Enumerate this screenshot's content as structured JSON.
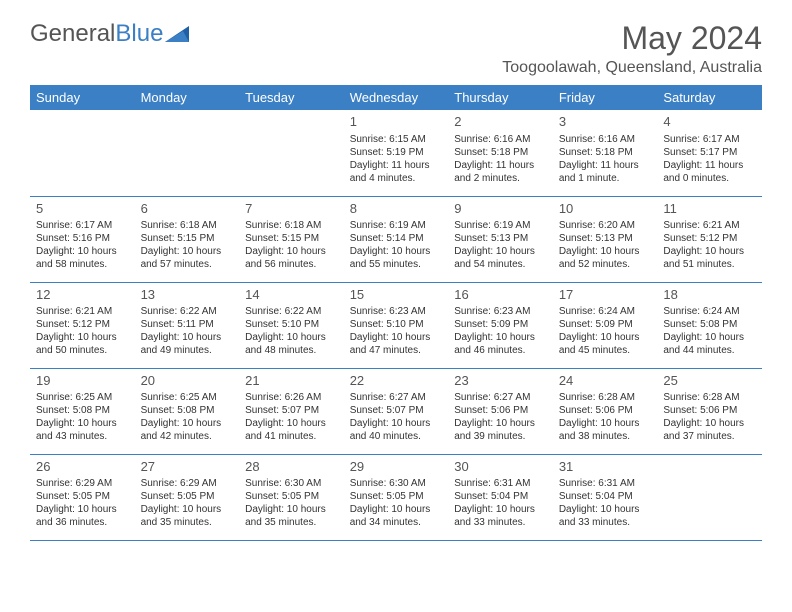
{
  "logo": {
    "text_gray": "General",
    "text_blue": "Blue"
  },
  "title": "May 2024",
  "location": "Toogoolawah, Queensland, Australia",
  "header_bg": "#3b7fc4",
  "header_fg": "#ffffff",
  "border_color": "#3b7fc4",
  "weekdays": [
    "Sunday",
    "Monday",
    "Tuesday",
    "Wednesday",
    "Thursday",
    "Friday",
    "Saturday"
  ],
  "weeks": [
    [
      {
        "day": ""
      },
      {
        "day": ""
      },
      {
        "day": ""
      },
      {
        "day": "1",
        "sunrise": "Sunrise: 6:15 AM",
        "sunset": "Sunset: 5:19 PM",
        "dl1": "Daylight: 11 hours",
        "dl2": "and 4 minutes."
      },
      {
        "day": "2",
        "sunrise": "Sunrise: 6:16 AM",
        "sunset": "Sunset: 5:18 PM",
        "dl1": "Daylight: 11 hours",
        "dl2": "and 2 minutes."
      },
      {
        "day": "3",
        "sunrise": "Sunrise: 6:16 AM",
        "sunset": "Sunset: 5:18 PM",
        "dl1": "Daylight: 11 hours",
        "dl2": "and 1 minute."
      },
      {
        "day": "4",
        "sunrise": "Sunrise: 6:17 AM",
        "sunset": "Sunset: 5:17 PM",
        "dl1": "Daylight: 11 hours",
        "dl2": "and 0 minutes."
      }
    ],
    [
      {
        "day": "5",
        "sunrise": "Sunrise: 6:17 AM",
        "sunset": "Sunset: 5:16 PM",
        "dl1": "Daylight: 10 hours",
        "dl2": "and 58 minutes."
      },
      {
        "day": "6",
        "sunrise": "Sunrise: 6:18 AM",
        "sunset": "Sunset: 5:15 PM",
        "dl1": "Daylight: 10 hours",
        "dl2": "and 57 minutes."
      },
      {
        "day": "7",
        "sunrise": "Sunrise: 6:18 AM",
        "sunset": "Sunset: 5:15 PM",
        "dl1": "Daylight: 10 hours",
        "dl2": "and 56 minutes."
      },
      {
        "day": "8",
        "sunrise": "Sunrise: 6:19 AM",
        "sunset": "Sunset: 5:14 PM",
        "dl1": "Daylight: 10 hours",
        "dl2": "and 55 minutes."
      },
      {
        "day": "9",
        "sunrise": "Sunrise: 6:19 AM",
        "sunset": "Sunset: 5:13 PM",
        "dl1": "Daylight: 10 hours",
        "dl2": "and 54 minutes."
      },
      {
        "day": "10",
        "sunrise": "Sunrise: 6:20 AM",
        "sunset": "Sunset: 5:13 PM",
        "dl1": "Daylight: 10 hours",
        "dl2": "and 52 minutes."
      },
      {
        "day": "11",
        "sunrise": "Sunrise: 6:21 AM",
        "sunset": "Sunset: 5:12 PM",
        "dl1": "Daylight: 10 hours",
        "dl2": "and 51 minutes."
      }
    ],
    [
      {
        "day": "12",
        "sunrise": "Sunrise: 6:21 AM",
        "sunset": "Sunset: 5:12 PM",
        "dl1": "Daylight: 10 hours",
        "dl2": "and 50 minutes."
      },
      {
        "day": "13",
        "sunrise": "Sunrise: 6:22 AM",
        "sunset": "Sunset: 5:11 PM",
        "dl1": "Daylight: 10 hours",
        "dl2": "and 49 minutes."
      },
      {
        "day": "14",
        "sunrise": "Sunrise: 6:22 AM",
        "sunset": "Sunset: 5:10 PM",
        "dl1": "Daylight: 10 hours",
        "dl2": "and 48 minutes."
      },
      {
        "day": "15",
        "sunrise": "Sunrise: 6:23 AM",
        "sunset": "Sunset: 5:10 PM",
        "dl1": "Daylight: 10 hours",
        "dl2": "and 47 minutes."
      },
      {
        "day": "16",
        "sunrise": "Sunrise: 6:23 AM",
        "sunset": "Sunset: 5:09 PM",
        "dl1": "Daylight: 10 hours",
        "dl2": "and 46 minutes."
      },
      {
        "day": "17",
        "sunrise": "Sunrise: 6:24 AM",
        "sunset": "Sunset: 5:09 PM",
        "dl1": "Daylight: 10 hours",
        "dl2": "and 45 minutes."
      },
      {
        "day": "18",
        "sunrise": "Sunrise: 6:24 AM",
        "sunset": "Sunset: 5:08 PM",
        "dl1": "Daylight: 10 hours",
        "dl2": "and 44 minutes."
      }
    ],
    [
      {
        "day": "19",
        "sunrise": "Sunrise: 6:25 AM",
        "sunset": "Sunset: 5:08 PM",
        "dl1": "Daylight: 10 hours",
        "dl2": "and 43 minutes."
      },
      {
        "day": "20",
        "sunrise": "Sunrise: 6:25 AM",
        "sunset": "Sunset: 5:08 PM",
        "dl1": "Daylight: 10 hours",
        "dl2": "and 42 minutes."
      },
      {
        "day": "21",
        "sunrise": "Sunrise: 6:26 AM",
        "sunset": "Sunset: 5:07 PM",
        "dl1": "Daylight: 10 hours",
        "dl2": "and 41 minutes."
      },
      {
        "day": "22",
        "sunrise": "Sunrise: 6:27 AM",
        "sunset": "Sunset: 5:07 PM",
        "dl1": "Daylight: 10 hours",
        "dl2": "and 40 minutes."
      },
      {
        "day": "23",
        "sunrise": "Sunrise: 6:27 AM",
        "sunset": "Sunset: 5:06 PM",
        "dl1": "Daylight: 10 hours",
        "dl2": "and 39 minutes."
      },
      {
        "day": "24",
        "sunrise": "Sunrise: 6:28 AM",
        "sunset": "Sunset: 5:06 PM",
        "dl1": "Daylight: 10 hours",
        "dl2": "and 38 minutes."
      },
      {
        "day": "25",
        "sunrise": "Sunrise: 6:28 AM",
        "sunset": "Sunset: 5:06 PM",
        "dl1": "Daylight: 10 hours",
        "dl2": "and 37 minutes."
      }
    ],
    [
      {
        "day": "26",
        "sunrise": "Sunrise: 6:29 AM",
        "sunset": "Sunset: 5:05 PM",
        "dl1": "Daylight: 10 hours",
        "dl2": "and 36 minutes."
      },
      {
        "day": "27",
        "sunrise": "Sunrise: 6:29 AM",
        "sunset": "Sunset: 5:05 PM",
        "dl1": "Daylight: 10 hours",
        "dl2": "and 35 minutes."
      },
      {
        "day": "28",
        "sunrise": "Sunrise: 6:30 AM",
        "sunset": "Sunset: 5:05 PM",
        "dl1": "Daylight: 10 hours",
        "dl2": "and 35 minutes."
      },
      {
        "day": "29",
        "sunrise": "Sunrise: 6:30 AM",
        "sunset": "Sunset: 5:05 PM",
        "dl1": "Daylight: 10 hours",
        "dl2": "and 34 minutes."
      },
      {
        "day": "30",
        "sunrise": "Sunrise: 6:31 AM",
        "sunset": "Sunset: 5:04 PM",
        "dl1": "Daylight: 10 hours",
        "dl2": "and 33 minutes."
      },
      {
        "day": "31",
        "sunrise": "Sunrise: 6:31 AM",
        "sunset": "Sunset: 5:04 PM",
        "dl1": "Daylight: 10 hours",
        "dl2": "and 33 minutes."
      },
      {
        "day": ""
      }
    ]
  ]
}
